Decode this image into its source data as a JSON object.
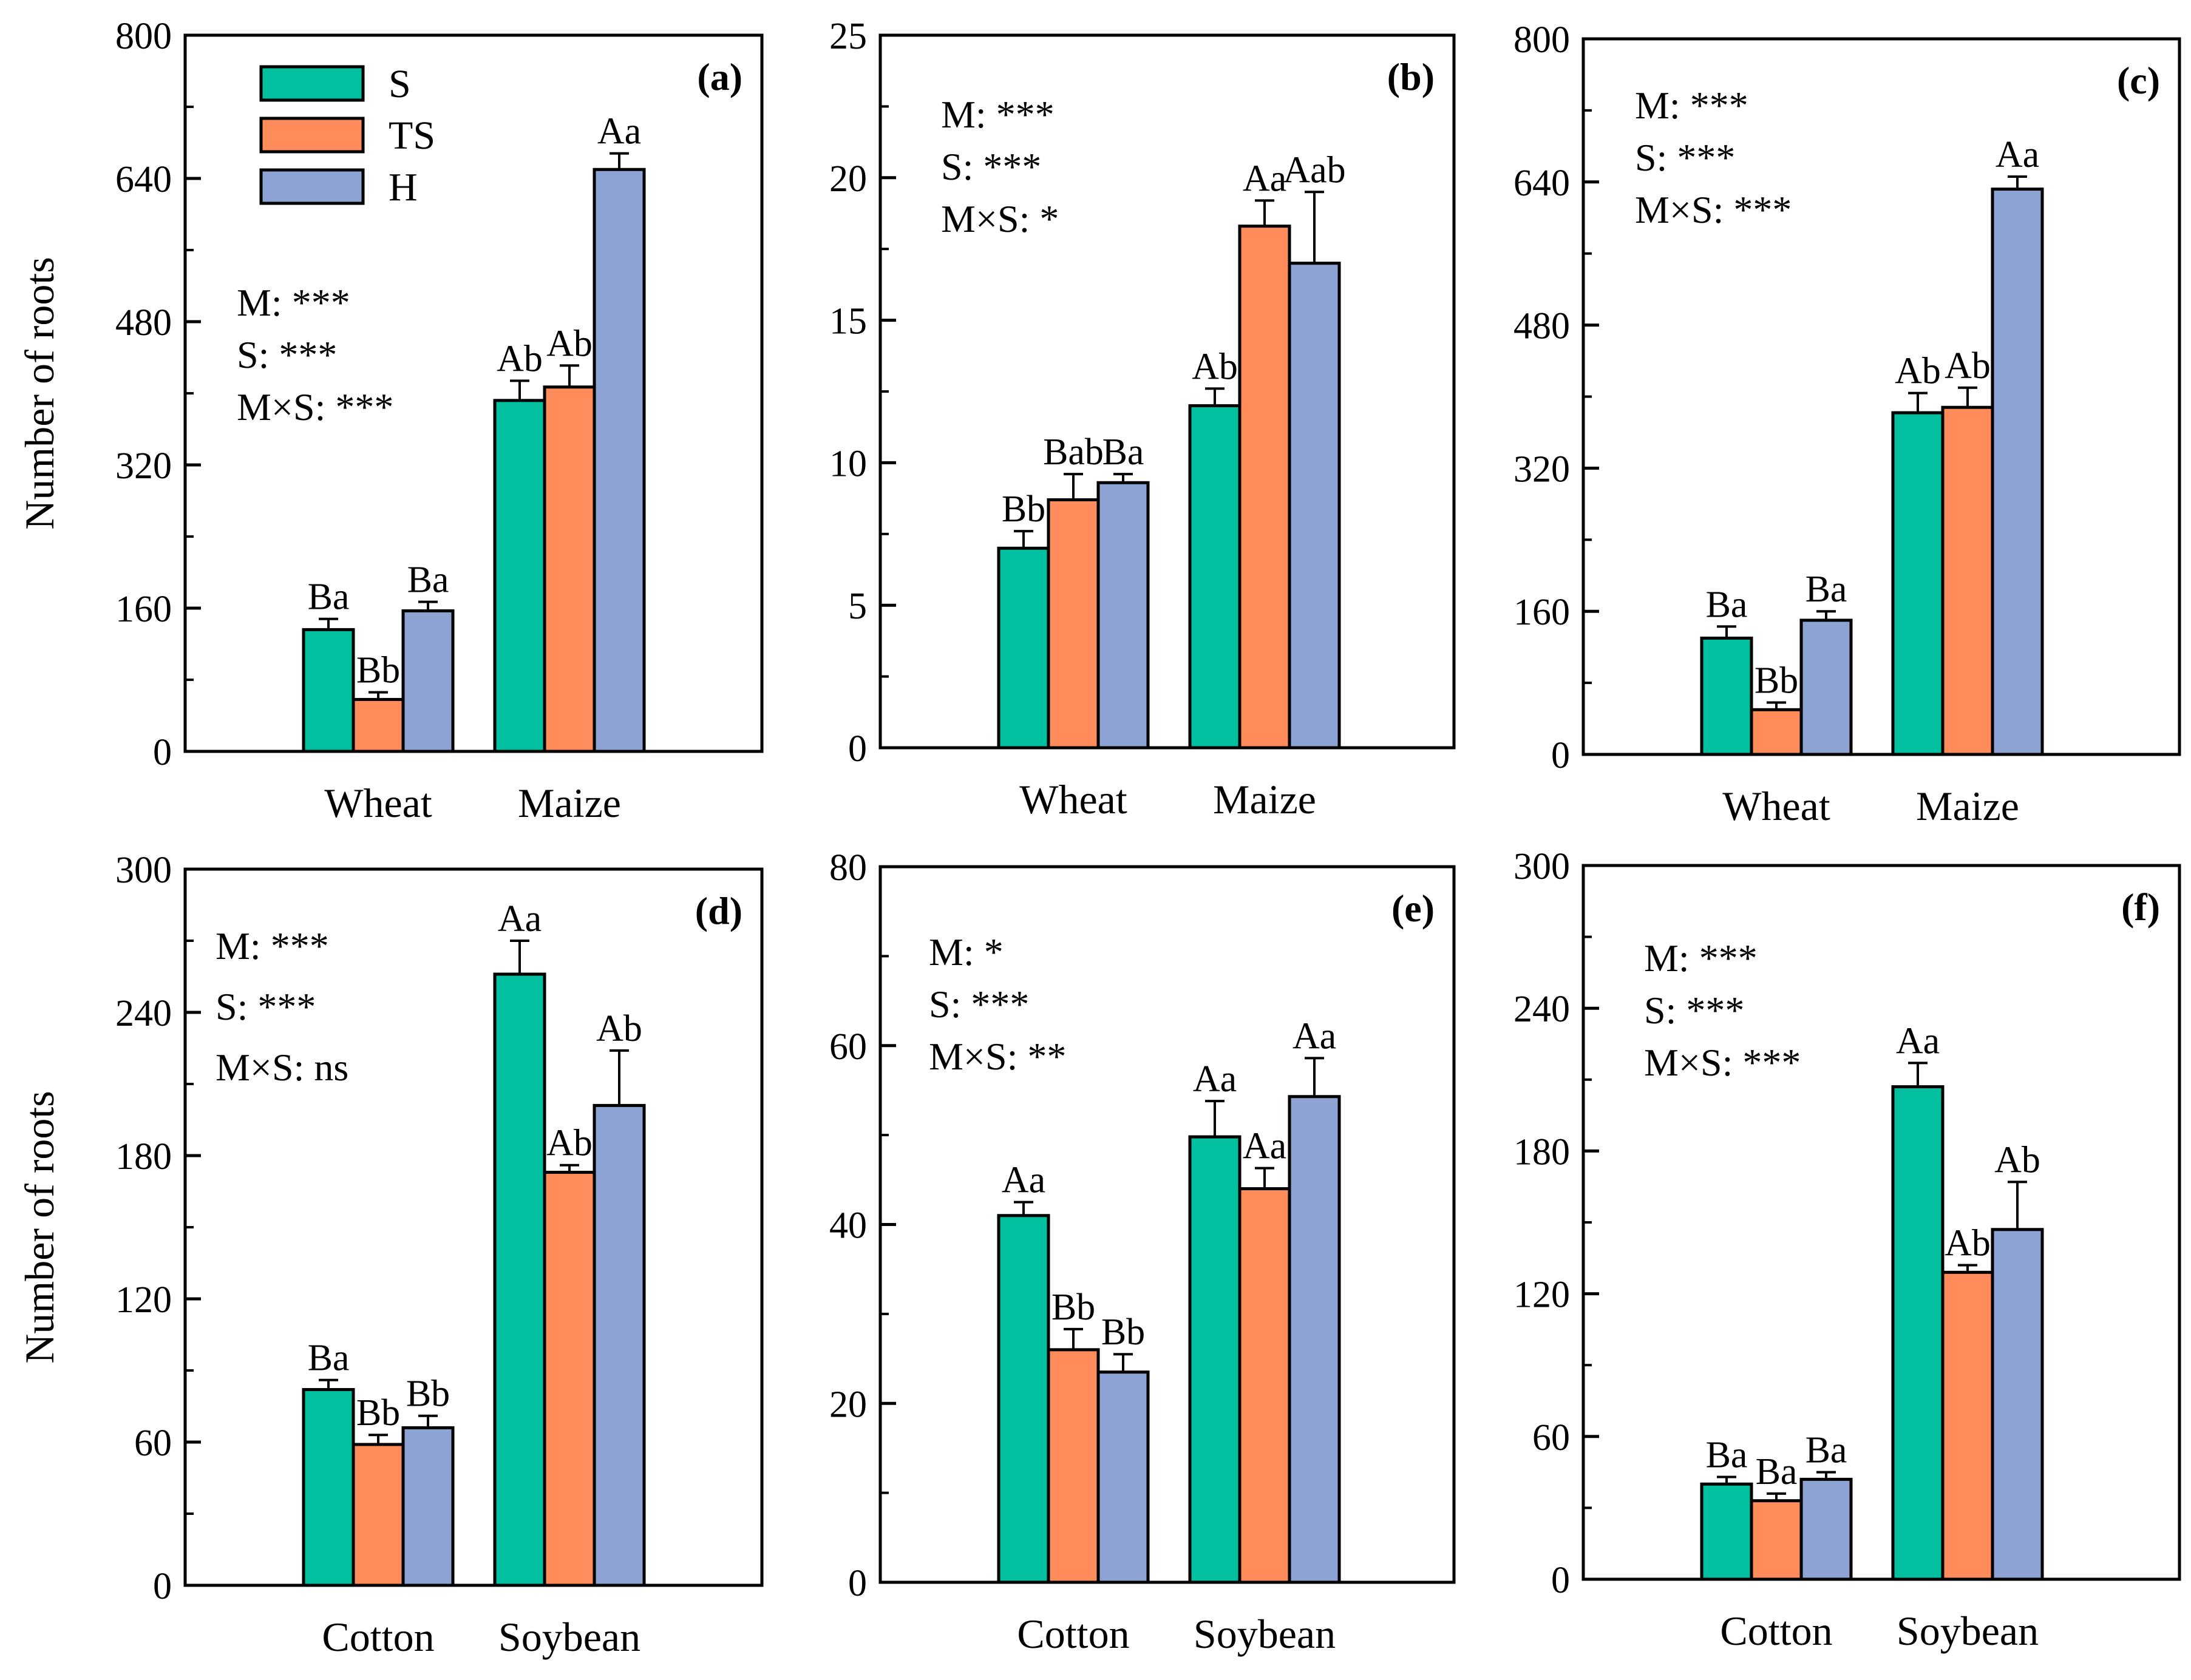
{
  "figure": {
    "ylabel_shared": "Number of roots"
  },
  "legend": [
    {
      "label": "S",
      "color": "#00C0A0"
    },
    {
      "label": "TS",
      "color": "#FF8C5A"
    },
    {
      "label": "H",
      "color": "#8DA3D3"
    }
  ],
  "chart_data": [
    {
      "type": "bar",
      "panel_label": "(a)",
      "ylabel": "Number of roots",
      "categories": [
        "Wheat",
        "Maize"
      ],
      "ylim": [
        0,
        800
      ],
      "yticks": [
        0,
        160,
        320,
        480,
        640,
        800
      ],
      "series": [
        {
          "name": "S",
          "values": [
            136,
            392
          ],
          "errors": [
            12,
            22
          ],
          "letters": [
            "Ba",
            "Ab"
          ]
        },
        {
          "name": "TS",
          "values": [
            58,
            407
          ],
          "errors": [
            8,
            24
          ],
          "letters": [
            "Bb",
            "Ab"
          ]
        },
        {
          "name": "H",
          "values": [
            157,
            650
          ],
          "errors": [
            10,
            18
          ],
          "letters": [
            "Ba",
            "Aa"
          ]
        }
      ],
      "stats": [
        "M: ***",
        "S: ***",
        "M×S: ***"
      ]
    },
    {
      "type": "bar",
      "panel_label": "(b)",
      "ylabel": "",
      "categories": [
        "Wheat",
        "Maize"
      ],
      "ylim": [
        0,
        25
      ],
      "yticks": [
        0,
        5,
        10,
        15,
        20,
        25
      ],
      "series": [
        {
          "name": "S",
          "values": [
            7.0,
            12.0
          ],
          "errors": [
            0.6,
            0.6
          ],
          "letters": [
            "Bb",
            "Ab"
          ]
        },
        {
          "name": "TS",
          "values": [
            8.7,
            18.3
          ],
          "errors": [
            0.9,
            0.9
          ],
          "letters": [
            "Bab",
            "Aa"
          ]
        },
        {
          "name": "H",
          "values": [
            9.3,
            17.0
          ],
          "errors": [
            0.3,
            2.5
          ],
          "letters": [
            "Ba",
            "Aab"
          ]
        }
      ],
      "stats": [
        "M: ***",
        "S: ***",
        "M×S: *"
      ]
    },
    {
      "type": "bar",
      "panel_label": "(c)",
      "ylabel": "",
      "categories": [
        "Wheat",
        "Maize"
      ],
      "ylim": [
        0,
        800
      ],
      "yticks": [
        0,
        160,
        320,
        480,
        640,
        800
      ],
      "series": [
        {
          "name": "S",
          "values": [
            130,
            382
          ],
          "errors": [
            13,
            22
          ],
          "letters": [
            "Ba",
            "Ab"
          ]
        },
        {
          "name": "TS",
          "values": [
            50,
            388
          ],
          "errors": [
            8,
            22
          ],
          "letters": [
            "Bb",
            "Ab"
          ]
        },
        {
          "name": "H",
          "values": [
            150,
            632
          ],
          "errors": [
            10,
            14
          ],
          "letters": [
            "Ba",
            "Aa"
          ]
        }
      ],
      "stats": [
        "M: ***",
        "S: ***",
        "M×S: ***"
      ]
    },
    {
      "type": "bar",
      "panel_label": "(d)",
      "ylabel": "Number of roots",
      "categories": [
        "Cotton",
        "Soybean"
      ],
      "ylim": [
        0,
        300
      ],
      "yticks": [
        0,
        60,
        120,
        180,
        240,
        300
      ],
      "series": [
        {
          "name": "S",
          "values": [
            82,
            256
          ],
          "errors": [
            4,
            14
          ],
          "letters": [
            "Ba",
            "Aa"
          ]
        },
        {
          "name": "TS",
          "values": [
            59,
            173
          ],
          "errors": [
            4,
            3
          ],
          "letters": [
            "Bb",
            "Ab"
          ]
        },
        {
          "name": "H",
          "values": [
            66,
            201
          ],
          "errors": [
            5,
            23
          ],
          "letters": [
            "Bb",
            "Ab"
          ]
        }
      ],
      "stats": [
        "M: ***",
        "S: ***",
        "M×S: ns"
      ]
    },
    {
      "type": "bar",
      "panel_label": "(e)",
      "ylabel": "",
      "categories": [
        "Cotton",
        "Soybean"
      ],
      "ylim": [
        0,
        80
      ],
      "yticks": [
        0,
        20,
        40,
        60,
        80
      ],
      "series": [
        {
          "name": "S",
          "values": [
            41.0,
            49.8
          ],
          "errors": [
            1.5,
            4.0
          ],
          "letters": [
            "Aa",
            "Aa"
          ]
        },
        {
          "name": "TS",
          "values": [
            26.0,
            44.0
          ],
          "errors": [
            2.3,
            2.3
          ],
          "letters": [
            "Bb",
            "Aa"
          ]
        },
        {
          "name": "H",
          "values": [
            23.5,
            54.3
          ],
          "errors": [
            2.0,
            4.3
          ],
          "letters": [
            "Bb",
            "Aa"
          ]
        }
      ],
      "stats": [
        "M: *",
        "S: ***",
        "M×S: **"
      ]
    },
    {
      "type": "bar",
      "panel_label": "(f)",
      "ylabel": "",
      "categories": [
        "Cotton",
        "Soybean"
      ],
      "ylim": [
        0,
        300
      ],
      "yticks": [
        0,
        60,
        120,
        180,
        240,
        300
      ],
      "series": [
        {
          "name": "S",
          "values": [
            40,
            207
          ],
          "errors": [
            3,
            10
          ],
          "letters": [
            "Ba",
            "Aa"
          ]
        },
        {
          "name": "TS",
          "values": [
            33,
            129
          ],
          "errors": [
            3,
            3
          ],
          "letters": [
            "Ba",
            "Ab"
          ]
        },
        {
          "name": "H",
          "values": [
            42,
            147
          ],
          "errors": [
            3,
            20
          ],
          "letters": [
            "Ba",
            "Ab"
          ]
        }
      ],
      "stats": [
        "M: ***",
        "S: ***",
        "M×S: ***"
      ]
    }
  ]
}
